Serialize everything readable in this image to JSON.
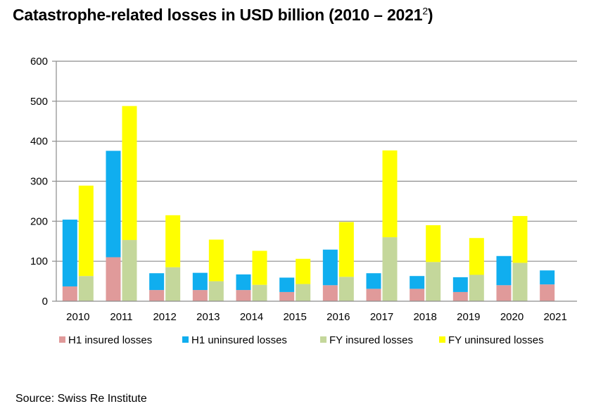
{
  "title": {
    "main": "Catastrophe-related losses in USD billion (2010 – 2021",
    "superscript": "2",
    "close": ")"
  },
  "source": "Source: Swiss Re Institute",
  "chart_data": {
    "type": "bar",
    "subtype": "stacked-grouped",
    "categories": [
      "2010",
      "2011",
      "2012",
      "2013",
      "2014",
      "2015",
      "2016",
      "2017",
      "2018",
      "2019",
      "2020",
      "2021"
    ],
    "ylim": [
      0,
      600
    ],
    "yticks": [
      0,
      100,
      200,
      300,
      400,
      500,
      600
    ],
    "grid": true,
    "legend_position": "bottom",
    "groups": [
      {
        "name": "H1",
        "series": [
          {
            "name": "H1 insured losses",
            "color": "#e09a9a",
            "values": [
              37,
              110,
              28,
              28,
              28,
              23,
              40,
              31,
              31,
              23,
              40,
              42
            ]
          },
          {
            "name": "H1 uninsured losses",
            "color": "#10aeef",
            "values": [
              167,
              266,
              42,
              43,
              39,
              36,
              89,
              39,
              32,
              37,
              73,
              35
            ]
          }
        ]
      },
      {
        "name": "FY",
        "series": [
          {
            "name": "FY insured losses",
            "color": "#c4d79b",
            "values": [
              63,
              153,
              85,
              50,
              41,
              43,
              61,
              160,
              98,
              66,
              96,
              null
            ]
          },
          {
            "name": "FY uninsured losses",
            "color": "#ffff00",
            "values": [
              226,
              335,
              130,
              104,
              85,
              63,
              137,
              217,
              92,
              92,
              117,
              null
            ]
          }
        ]
      }
    ]
  }
}
